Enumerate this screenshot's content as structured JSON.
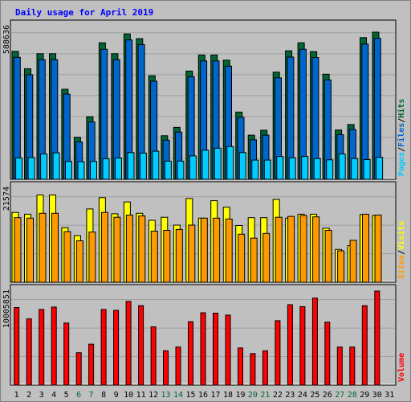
{
  "chart_data": {
    "title": "Daily usage for April 2019",
    "type": "bar",
    "categories": [
      "1",
      "2",
      "3",
      "4",
      "5",
      "6",
      "7",
      "8",
      "9",
      "10",
      "11",
      "12",
      "13",
      "14",
      "15",
      "16",
      "17",
      "18",
      "19",
      "20",
      "21",
      "22",
      "23",
      "24",
      "25",
      "26",
      "27",
      "28",
      "29",
      "30",
      "31"
    ],
    "weekend_days": [
      "6",
      "7",
      "13",
      "14",
      "20",
      "21",
      "27",
      "28"
    ],
    "colors": {
      "hits": "#006633",
      "files": "#0066cc",
      "pages": "#00ccff",
      "visits": "#ffff00",
      "sites": "#ff9900",
      "volume": "#ff0000",
      "axis_weekday": "#000000",
      "axis_weekend": "#006633",
      "background": "#c0c0c0",
      "title": "#0000ff"
    },
    "panels": [
      {
        "id": "hits-files-pages",
        "ymax_label": "588636",
        "ymax": 588636,
        "legend": [
          {
            "label": "Hits",
            "key": "hits"
          },
          {
            "label": "Files",
            "key": "files"
          },
          {
            "label": "Pages",
            "key": "pages"
          }
        ],
        "series": [
          {
            "name": "Hits",
            "key": "hits",
            "values": [
              493000,
              426000,
              484000,
              484000,
              347000,
              162000,
              241000,
              526000,
              484000,
              560000,
              542000,
              399000,
              168000,
              200000,
              417000,
              479000,
              479000,
              459000,
              259000,
              170000,
              189000,
              413000,
              495000,
              526000,
              492000,
              405000,
              190000,
              211000,
              546000,
              567000,
              0
            ]
          },
          {
            "name": "Files",
            "key": "files",
            "values": [
              470000,
              403000,
              461000,
              461000,
              328000,
              144000,
              221000,
              501000,
              461000,
              537000,
              519000,
              378000,
              151000,
              182000,
              395000,
              456000,
              456000,
              436000,
              239000,
              152000,
              170000,
              391000,
              471000,
              501000,
              469000,
              383000,
              172000,
              192000,
              521000,
              543000,
              0
            ]
          },
          {
            "name": "Pages",
            "key": "pages",
            "values": [
              82000,
              84000,
              98000,
              102000,
              69000,
              68000,
              69000,
              79000,
              82000,
              103000,
              101000,
              108000,
              70000,
              70000,
              90000,
              112000,
              120000,
              126000,
              103000,
              74000,
              74000,
              88000,
              83000,
              88000,
              80000,
              75000,
              98000,
              80000,
              76000,
              85000,
              0
            ]
          }
        ]
      },
      {
        "id": "visits-sites",
        "ymax_label": "21574",
        "ymax": 21574,
        "legend": [
          {
            "label": "Visits",
            "key": "visits"
          },
          {
            "label": "Sites",
            "key": "sites"
          }
        ],
        "series": [
          {
            "name": "Visits",
            "key": "visits",
            "values": [
              16000,
              15600,
              20000,
              20000,
              12500,
              10700,
              16800,
              19400,
              15700,
              18400,
              15800,
              14200,
              14900,
              13100,
              19200,
              14700,
              18700,
              17200,
              13000,
              14800,
              14800,
              19000,
              14700,
              15600,
              15600,
              12400,
              7500,
              8400,
              15500,
              15300,
              0
            ]
          },
          {
            "name": "Sites",
            "key": "sites",
            "values": [
              14800,
              14700,
              15800,
              15800,
              11600,
              9500,
              11500,
              16000,
              14900,
              15400,
              15200,
              11700,
              11900,
              12100,
              13100,
              14700,
              14700,
              14500,
              11000,
              10100,
              11200,
              14900,
              15100,
              15300,
              15000,
              11900,
              7200,
              9600,
              15600,
              15400,
              0
            ]
          }
        ]
      },
      {
        "id": "volume",
        "ymax_label": "10005851",
        "ymax": 10005851,
        "legend": [
          {
            "label": "Volume",
            "key": "volume"
          }
        ],
        "series": [
          {
            "name": "Volume",
            "key": "volume",
            "values": [
              8250000,
              7050000,
              8050000,
              8300000,
              6600000,
              3450000,
              4350000,
              8050000,
              7950000,
              8900000,
              8450000,
              6200000,
              3650000,
              4050000,
              6750000,
              7700000,
              7650000,
              7450000,
              3950000,
              3350000,
              3650000,
              6850000,
              8550000,
              8350000,
              9250000,
              6700000,
              4050000,
              4050000,
              8450000,
              10005851,
              0
            ]
          }
        ]
      }
    ],
    "right_label_separators": "/"
  }
}
